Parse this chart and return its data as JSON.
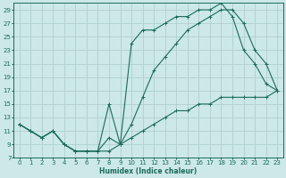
{
  "xlabel": "Humidex (Indice chaleur)",
  "bg_color": "#cce8e8",
  "grid_color": "#b0d0d0",
  "line_color": "#1a6b5a",
  "xlim": [
    -0.5,
    23.5
  ],
  "ylim": [
    7,
    30
  ],
  "xticks": [
    0,
    1,
    2,
    3,
    4,
    5,
    6,
    7,
    8,
    9,
    10,
    11,
    12,
    13,
    14,
    15,
    16,
    17,
    18,
    19,
    20,
    21,
    22,
    23
  ],
  "yticks": [
    7,
    9,
    11,
    13,
    15,
    17,
    19,
    21,
    23,
    25,
    27,
    29
  ],
  "curve_top_x": [
    0,
    1,
    2,
    3,
    4,
    5,
    6,
    7,
    8,
    9,
    10,
    11,
    12,
    13,
    14,
    15,
    16,
    17,
    18,
    19,
    20,
    21,
    22,
    23
  ],
  "curve_top_y": [
    12,
    11,
    10,
    11,
    9,
    8,
    8,
    8,
    15,
    9,
    24,
    26,
    26,
    27,
    28,
    28,
    29,
    29,
    30,
    28,
    23,
    21,
    18,
    17
  ],
  "curve_mid_x": [
    0,
    1,
    2,
    3,
    4,
    5,
    6,
    7,
    8,
    9,
    10,
    11,
    12,
    13,
    14,
    15,
    16,
    17,
    18,
    19,
    20,
    21,
    22,
    23
  ],
  "curve_mid_y": [
    12,
    11,
    10,
    11,
    9,
    8,
    8,
    8,
    10,
    9,
    12,
    16,
    20,
    22,
    24,
    26,
    27,
    28,
    29,
    29,
    27,
    23,
    21,
    17
  ],
  "curve_bot_x": [
    0,
    1,
    2,
    3,
    4,
    5,
    6,
    7,
    8,
    9,
    10,
    11,
    12,
    13,
    14,
    15,
    16,
    17,
    18,
    19,
    20,
    21,
    22,
    23
  ],
  "curve_bot_y": [
    12,
    11,
    10,
    11,
    9,
    8,
    8,
    8,
    8,
    9,
    10,
    11,
    12,
    13,
    14,
    14,
    15,
    15,
    16,
    16,
    16,
    16,
    16,
    17
  ]
}
